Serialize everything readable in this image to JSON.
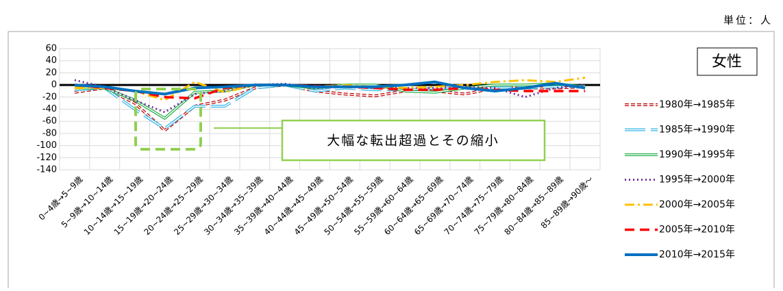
{
  "unit": "単位：人",
  "chart_data": {
    "type": "line",
    "title": "女性",
    "annotation": "大幅な転出超過とその縮小",
    "categories": [
      "0~4歳→5~9歳",
      "5~9歳→10~14歳",
      "10~14歳→15~19歳",
      "15~19歳→20~24歳",
      "20~24歳→25~29歳",
      "25~29歳→30~34歳",
      "30~34歳→35~39歳",
      "35~39歳→40~44歳",
      "40~44歳→45~49歳",
      "45~49歳→50~54歳",
      "50~54歳→55~59歳",
      "55~59歳→60~64歳",
      "60~64歳→65~69歳",
      "65~69歳→70~74歳",
      "70~74歳→75~79歳",
      "75~79歳→80~84歳",
      "80~84歳→85~89歳",
      "85~89歳→90歳～"
    ],
    "series": [
      {
        "name": "1980年→1985年",
        "color": "#c00000",
        "dash": "6 3",
        "hollow": true,
        "values": [
          -12,
          -5,
          -30,
          -75,
          -35,
          -25,
          -5,
          0,
          -10,
          -15,
          -18,
          -10,
          -10,
          -15,
          -5,
          -5,
          -5,
          -3
        ]
      },
      {
        "name": "1985年→1990年",
        "color": "#33b5e5",
        "dash": "30 8",
        "hollow": true,
        "values": [
          -8,
          -5,
          -40,
          -72,
          -35,
          -35,
          -5,
          0,
          -10,
          -5,
          -8,
          -8,
          -5,
          -5,
          -5,
          -5,
          -3,
          -2
        ]
      },
      {
        "name": "1990年→1995年",
        "color": "#22b04a",
        "dash": "",
        "hollow": true,
        "values": [
          -5,
          -5,
          -25,
          -55,
          -12,
          -10,
          0,
          0,
          -5,
          0,
          0,
          -10,
          -12,
          -5,
          0,
          0,
          2,
          -3
        ]
      },
      {
        "name": "1995年→2000年",
        "color": "#7030a0",
        "dash": "2 4",
        "hollow": false,
        "width": 3,
        "values": [
          8,
          -3,
          -25,
          -45,
          -15,
          -10,
          0,
          2,
          -5,
          -3,
          -5,
          -5,
          -5,
          -3,
          -5,
          -20,
          -5,
          0
        ]
      },
      {
        "name": "2000年→2005年",
        "color": "#ffc000",
        "dash": "14 5 3 5",
        "hollow": false,
        "width": 3,
        "values": [
          -5,
          -5,
          -10,
          -25,
          5,
          -12,
          0,
          0,
          -3,
          0,
          -3,
          -5,
          -3,
          0,
          5,
          8,
          5,
          12
        ]
      },
      {
        "name": "2005年→2010年",
        "color": "#ff0000",
        "dash": "14 8",
        "hollow": false,
        "width": 3.5,
        "values": [
          0,
          -5,
          -10,
          -20,
          -22,
          -5,
          0,
          0,
          -2,
          -3,
          -5,
          -8,
          -8,
          -5,
          -8,
          -10,
          -10,
          -10
        ]
      },
      {
        "name": "2010年→2015年",
        "color": "#0070c0",
        "dash": "",
        "hollow": false,
        "width": 4,
        "values": [
          0,
          -3,
          -10,
          -15,
          -5,
          -3,
          0,
          0,
          -3,
          -3,
          -3,
          0,
          5,
          -5,
          -10,
          -5,
          3,
          -5
        ]
      }
    ],
    "ylim": [
      -140,
      60
    ],
    "yticks": [
      60,
      40,
      20,
      0,
      -20,
      -40,
      -60,
      -80,
      -100,
      -120,
      -140
    ],
    "grid": true
  }
}
